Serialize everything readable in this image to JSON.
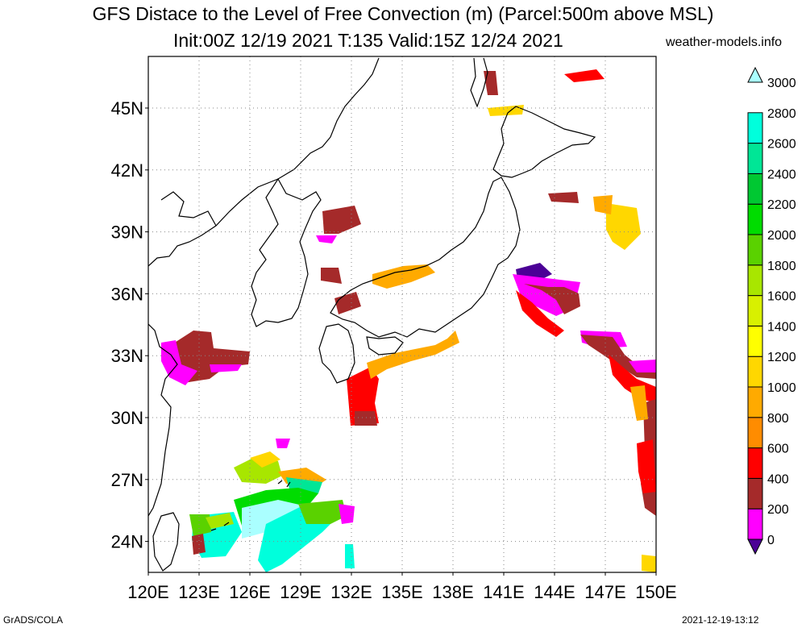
{
  "header": {
    "title_line1": "GFS Distace to the Level of Free Convection (m) (Parcel:500m above MSL)",
    "title_line2": "Init:00Z 12/19 2021 T:135 Valid:15Z 12/24 2021",
    "site": "weather-models.info"
  },
  "footer": {
    "left": "GrADS/COLA",
    "right": "2021-12-19-13:12"
  },
  "map": {
    "lon_range": [
      120,
      150
    ],
    "lat_range": [
      22.5,
      47.5
    ],
    "lat_labels": [
      "24N",
      "27N",
      "30N",
      "33N",
      "36N",
      "39N",
      "42N",
      "45N"
    ],
    "lat_values": [
      24,
      27,
      30,
      33,
      36,
      39,
      42,
      45
    ],
    "lon_labels": [
      "120E",
      "123E",
      "126E",
      "129E",
      "132E",
      "135E",
      "138E",
      "141E",
      "144E",
      "147E",
      "150E"
    ],
    "lon_values": [
      120,
      123,
      126,
      129,
      132,
      135,
      138,
      141,
      144,
      147,
      150
    ],
    "grid": "dotted"
  },
  "colorbar": {
    "labels": [
      "0",
      "200",
      "400",
      "600",
      "800",
      "1000",
      "1200",
      "1400",
      "1600",
      "1800",
      "2000",
      "2200",
      "2400",
      "2600",
      "2800",
      "3000"
    ],
    "colors": [
      "#4b0096",
      "#ff00ff",
      "#a52a2a",
      "#ff0000",
      "#ff8c00",
      "#ffaa00",
      "#ffd700",
      "#ffff00",
      "#d8f000",
      "#a8e600",
      "#5ad200",
      "#00dc00",
      "#00c832",
      "#00e696",
      "#00ffdc",
      "#aaffff"
    ]
  }
}
